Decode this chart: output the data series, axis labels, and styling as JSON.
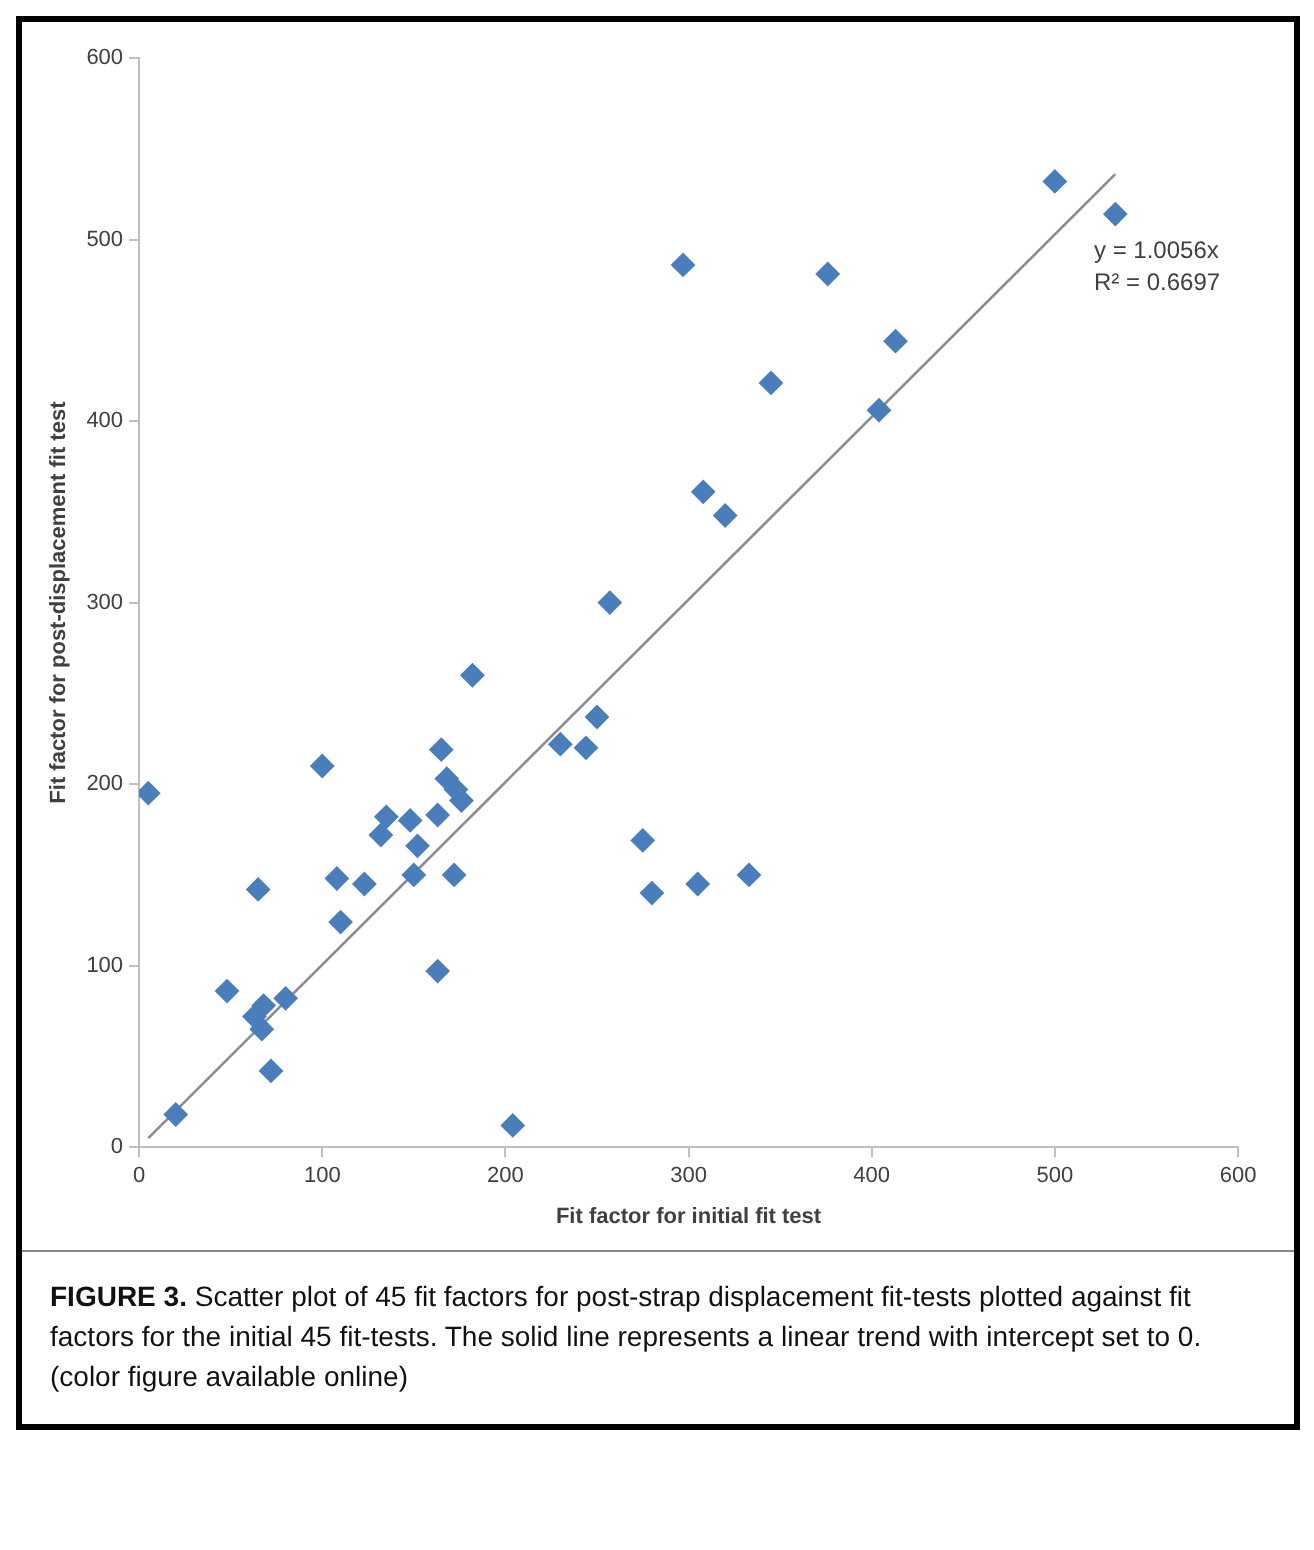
{
  "chart_data": {
    "type": "scatter",
    "xlabel": "Fit factor for initial fit test",
    "ylabel": "Fit factor for post-displacement fit test",
    "xlim": [
      0,
      600
    ],
    "xticks": [
      0,
      100,
      200,
      300,
      400,
      500,
      600
    ],
    "ylim": [
      0,
      600
    ],
    "yticks": [
      0,
      100,
      200,
      300,
      400,
      500,
      600
    ],
    "grid": false,
    "legend": false,
    "marker": "diamond",
    "series": [
      {
        "type": "scatter",
        "color": "#4a7ebb",
        "x": [
          5,
          20,
          48,
          60,
          63,
          65,
          67,
          68,
          72,
          80,
          100,
          108,
          110,
          123,
          132,
          135,
          148,
          150,
          152,
          163,
          163,
          165,
          168,
          172,
          173,
          176,
          182,
          204,
          230,
          244,
          250,
          257,
          275,
          280,
          297,
          305,
          308,
          320,
          333,
          345,
          376,
          404,
          413,
          500,
          533
        ],
        "values": [
          195,
          18,
          86,
          null,
          72,
          142,
          65,
          78,
          42,
          82,
          210,
          148,
          124,
          145,
          172,
          182,
          180,
          150,
          166,
          97,
          183,
          219,
          203,
          150,
          197,
          191,
          260,
          12,
          222,
          220,
          237,
          300,
          169,
          140,
          486,
          145,
          361,
          348,
          150,
          421,
          481,
          406,
          444,
          532,
          514
        ]
      },
      {
        "type": "line",
        "color": "#8c8c8c",
        "marker": "none",
        "line_style": "solid",
        "x": [
          5,
          533
        ],
        "values": [
          5,
          536
        ]
      }
    ],
    "annotations": [
      "y = 1.0056x",
      "R² = 0.6697",
      "FIGURE 3.",
      "Scatter plot of 45 fit factors for post-strap displacement fit-tests plotted against fit factors for the initial 45 fit-tests. The solid line represents a linear trend with intercept set to 0. (color figure available online)"
    ]
  }
}
